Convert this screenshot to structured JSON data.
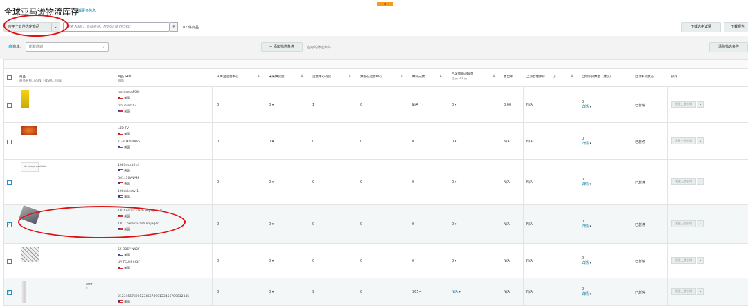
{
  "header": {
    "title": "全球亚马逊物流库存",
    "learn_more": "了解更多信息",
    "badge": "⚓"
  },
  "toolbar": {
    "apply_label": "应用于2 件选定商品",
    "search_placeholder": "搜索 ASIN、商品名称、MSKU 或 FNSKU",
    "item_count": "87 件商品",
    "download_selected": "下载选中详情",
    "download_report": "下载报告"
  },
  "filters": {
    "market_label": "商城:",
    "market_value": "所有商城",
    "add_filter": "+ 添加筛选条件",
    "applied_filters": "应用的筛选条件",
    "clear_filters": "清除筛选条件"
  },
  "columns": {
    "product": "商品",
    "product_sub": "商品名称, ASIN, FNSKU, 国家",
    "sku": "商品 SKU",
    "sku_sub": "商城",
    "inbound": "入库至运营中心",
    "future": "未来供货量",
    "fc_stock": "运营中心有货",
    "reserved": "预留在运营中心",
    "days_supply": "供货天数",
    "shipped": "已发货商品数量",
    "shipped_sub": "过去 30 天",
    "sell_through": "售出率",
    "upstream": "上游仓储库存",
    "replenish": "自动补货数量（建议）",
    "replen_status": "自动补货状态",
    "actions": "操作"
  },
  "row_common": {
    "country": "美国",
    "details": "详情",
    "status": "已暂停",
    "action": "发往上游仓储"
  },
  "rows": [
    {
      "selected": false,
      "image": "yellow-package",
      "skus": [
        "testsameASIN",
        "tshuotest12"
      ],
      "inbound": "0",
      "future": "0",
      "fc": "1",
      "reserved": "0",
      "days": "N/A",
      "shipped": "0",
      "sell": "0.00",
      "upstream": "N/A",
      "replen_na": "N/A",
      "replen": "0"
    },
    {
      "selected": false,
      "image": "led-tv",
      "skus": [
        "LED TV",
        "7T-BOX8-0A65"
      ],
      "inbound": "0",
      "future": "0",
      "fc": "0",
      "reserved": "0",
      "days": "0",
      "shipped": "0",
      "sell": "N/A",
      "upstream": "N/A",
      "replen_na": "N/A",
      "replen": "0"
    },
    {
      "selected": false,
      "image": "no-image",
      "image_text": "No image available",
      "skus": [
        "108Srick1014",
        "B01410YNAM",
        "108ricktetv-1"
      ],
      "inbound": "0",
      "future": "0",
      "fc": "0",
      "reserved": "0",
      "days": "0",
      "shipped": "0",
      "sell": "N/A",
      "upstream": "N/A",
      "replen_na": "N/A",
      "replen": "0"
    },
    {
      "selected": true,
      "image": "usb-drive",
      "skus": [
        "101Corsair Flash Voyager Vo",
        "101 Corsair Flash Voyager"
      ],
      "inbound": "0",
      "future": "0",
      "fc": "0",
      "reserved": "0",
      "days": "0",
      "shipped": "0",
      "sell": "N/A",
      "upstream": "N/A",
      "replen_na": "N/A",
      "replen": "0"
    },
    {
      "selected": false,
      "image": "sketch",
      "skus": [
        "55-3B6Y-N42F",
        "UV-TSUM-0IDF"
      ],
      "inbound": "0",
      "future": "0",
      "fc": "0",
      "reserved": "0",
      "days": "0",
      "shipped": "0",
      "sell": "N/A",
      "upstream": "N/A",
      "replen_na": "N/A",
      "replen": "0"
    },
    {
      "selected": true,
      "image": "bottle",
      "title_frag": "oint s...",
      "skus": [
        "012345678901234567890123456789012345"
      ],
      "inbound": "0",
      "future": "0",
      "fc": "9",
      "reserved": "0",
      "days": "365+",
      "shipped": "N/A",
      "sell": "N/A",
      "upstream": "N/A",
      "replen_na": "N/A",
      "replen": "0"
    }
  ]
}
